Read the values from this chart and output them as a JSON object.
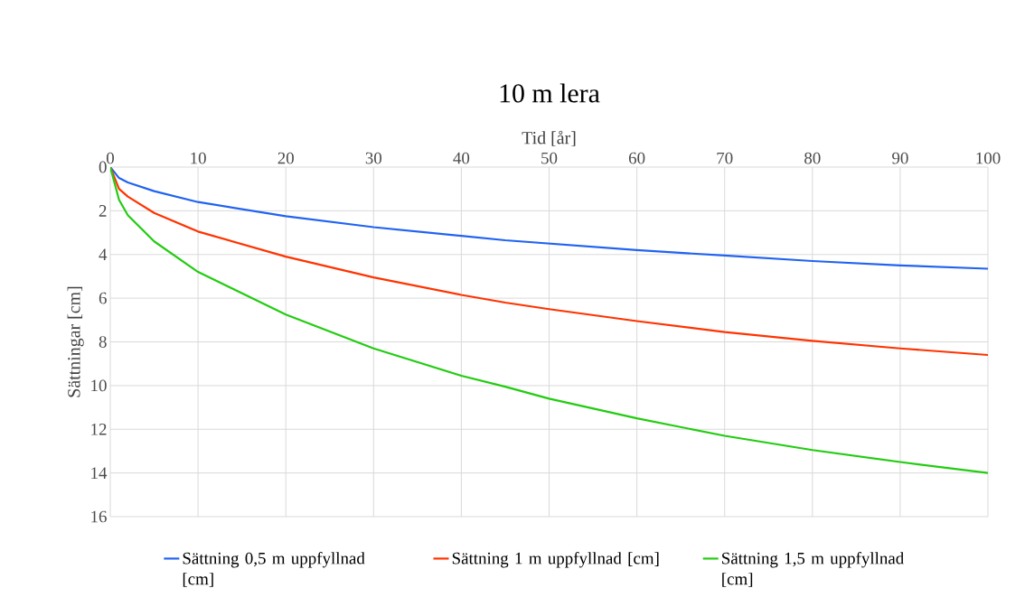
{
  "chart_data": {
    "type": "line",
    "title": "10 m lera",
    "xlabel": "Tid [år]",
    "ylabel": "Sättningar [cm]",
    "xlim": [
      0,
      100
    ],
    "xticks": [
      0,
      10,
      20,
      30,
      40,
      50,
      60,
      70,
      80,
      90,
      100
    ],
    "ylim": [
      16,
      0
    ],
    "yticks": [
      0,
      2,
      4,
      6,
      8,
      10,
      12,
      14,
      16
    ],
    "grid": true,
    "legend": "bottom",
    "marker": "none",
    "line_style": "solid",
    "x": [
      0,
      1,
      2,
      5,
      10,
      20,
      30,
      40,
      45,
      50,
      60,
      70,
      80,
      90,
      100
    ],
    "series": [
      {
        "name": "Sättning 0,5 m uppfyllnad [cm]",
        "color": "#2163f0",
        "values": [
          0,
          0.5,
          0.7,
          1.1,
          1.6,
          2.25,
          2.75,
          3.15,
          3.35,
          3.5,
          3.8,
          4.05,
          4.3,
          4.5,
          4.65
        ]
      },
      {
        "name": "Sättning 1 m uppfyllnad [cm]",
        "color": "#ff3300",
        "values": [
          0,
          1.0,
          1.35,
          2.1,
          2.95,
          4.1,
          5.05,
          5.85,
          6.2,
          6.5,
          7.05,
          7.55,
          7.95,
          8.3,
          8.6
        ]
      },
      {
        "name": "Sättning 1,5 m uppfyllnad [cm]",
        "color": "#22cc11",
        "values": [
          0,
          1.5,
          2.2,
          3.4,
          4.8,
          6.75,
          8.3,
          9.55,
          10.05,
          10.6,
          11.5,
          12.3,
          12.95,
          13.5,
          14.0
        ]
      }
    ]
  }
}
